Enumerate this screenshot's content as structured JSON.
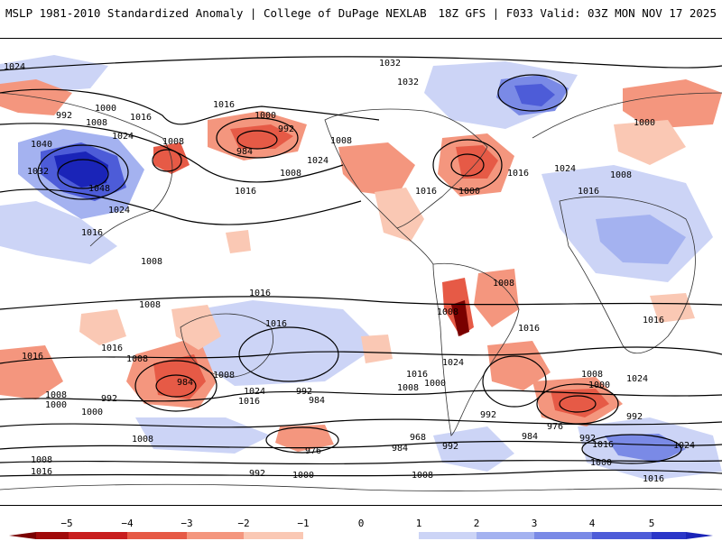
{
  "header": {
    "title_left": "MSLP 1981-2010 Standardized Anomaly | College of DuPage NEXLAB",
    "title_right": "18Z GFS | F033 Valid: 03Z MON NOV 17 2025"
  },
  "colors": {
    "neg5": "#7a0000",
    "neg4": "#c81e1e",
    "neg3": "#e65a46",
    "neg2": "#f4967e",
    "neg1": "#fac8b4",
    "pos1": "#ccd4f6",
    "pos2": "#a4b2f0",
    "pos3": "#7a8ae6",
    "pos4": "#4d5cd8",
    "pos5": "#1a24b8"
  },
  "colorbar": {
    "ticks": [
      "−5",
      "−4",
      "−3",
      "−2",
      "−1",
      "0",
      "1",
      "2",
      "3",
      "4",
      "5"
    ]
  },
  "isobar_labels": [
    "1024",
    "1032",
    "1032",
    "992",
    "1000",
    "1008",
    "1016",
    "1024",
    "1040",
    "1032",
    "1048",
    "1024",
    "1016",
    "1008",
    "992",
    "984",
    "1000",
    "1008",
    "1016",
    "1024",
    "1016",
    "1016",
    "1000",
    "1008",
    "1016",
    "1000",
    "1008",
    "1024",
    "1016",
    "1008",
    "1016",
    "1008",
    "1008",
    "1016",
    "1008",
    "1016",
    "1016",
    "1024",
    "1008",
    "1000",
    "1016",
    "1008",
    "1024",
    "1016",
    "1000",
    "992",
    "984",
    "1008",
    "1000",
    "992",
    "1008",
    "992",
    "1000",
    "984",
    "1024",
    "1016",
    "1016",
    "1008",
    "968",
    "984",
    "976",
    "992",
    "992",
    "984",
    "976",
    "992",
    "1016",
    "1024",
    "1000",
    "1008",
    "1016",
    "992",
    "1000",
    "1008",
    "1016",
    "1008"
  ]
}
